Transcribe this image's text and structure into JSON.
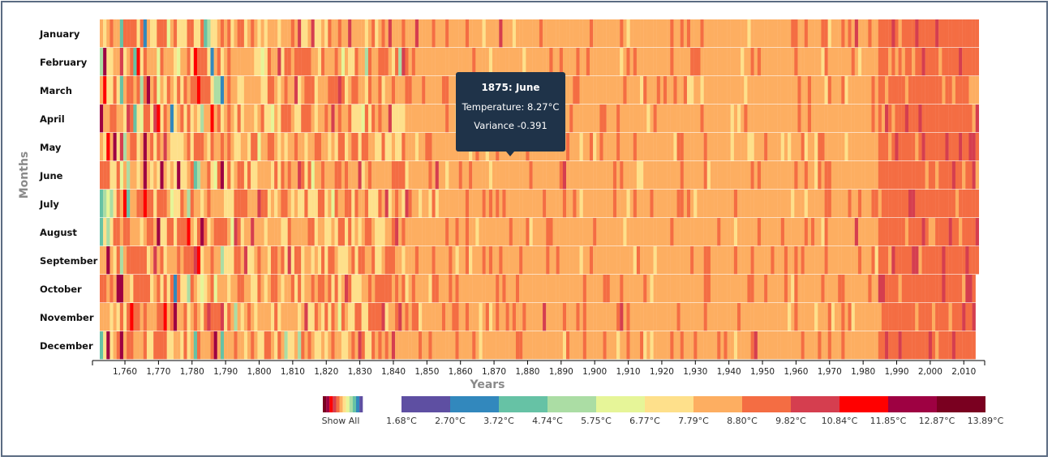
{
  "chart_data": {
    "type": "heatmap",
    "ylabel": "Months",
    "xlabel": "Years",
    "months": [
      "January",
      "February",
      "March",
      "April",
      "May",
      "June",
      "July",
      "August",
      "September",
      "October",
      "November",
      "December"
    ],
    "x_range": [
      1753,
      2015
    ],
    "x_ticks": [
      1760,
      1770,
      1780,
      1790,
      1800,
      1810,
      1820,
      1830,
      1840,
      1850,
      1860,
      1870,
      1880,
      1890,
      1900,
      1910,
      1920,
      1930,
      1940,
      1950,
      1960,
      1970,
      1980,
      1990,
      2000,
      2010
    ],
    "x_tick_labels": [
      "1,760",
      "1,770",
      "1,780",
      "1,790",
      "1,800",
      "1,810",
      "1,820",
      "1,830",
      "1,840",
      "1,850",
      "1,860",
      "1,870",
      "1,880",
      "1,890",
      "1,900",
      "1,910",
      "1,920",
      "1,930",
      "1,940",
      "1,950",
      "1,960",
      "1,970",
      "1,980",
      "1,990",
      "2,000",
      "2,010"
    ],
    "legend": {
      "show_all_label": "Show All",
      "colors": [
        "#5e4fa2",
        "#3288bd",
        "#66c2a5",
        "#abdda4",
        "#e6f598",
        "#fee08b",
        "#fdae61",
        "#f46d43",
        "#d53e4f",
        "#ff0000",
        "#9e0142",
        "#7a0020"
      ],
      "thresholds": [
        "1.68°C",
        "2.70°C",
        "3.72°C",
        "4.74°C",
        "5.75°C",
        "6.77°C",
        "7.79°C",
        "8.80°C",
        "9.82°C",
        "10.84°C",
        "11.85°C",
        "12.87°C",
        "13.89°C"
      ]
    },
    "tooltip": {
      "title": "1875: June",
      "temperature": "Temperature: 8.27°C",
      "variance": "Variance -0.391"
    }
  }
}
